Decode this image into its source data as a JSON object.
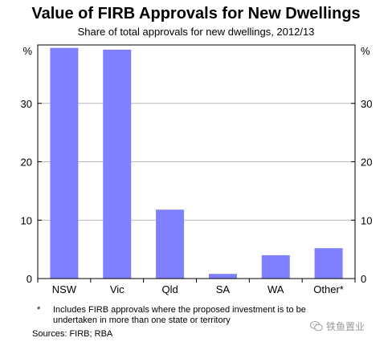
{
  "chart_data": {
    "type": "bar",
    "title": "Value of FIRB Approvals for New Dwellings",
    "subtitle": "Share of total approvals for new dwellings, 2012/13",
    "categories": [
      "NSW",
      "Vic",
      "Qld",
      "SA",
      "WA",
      "Other*"
    ],
    "values": [
      39.5,
      39.2,
      11.8,
      0.8,
      4.0,
      5.2
    ],
    "y_unit_label": "%",
    "ylim": [
      0,
      40
    ],
    "yticks": [
      0,
      10,
      20,
      30
    ],
    "grid": true,
    "bar_color": "#7f7fff"
  },
  "footnote": {
    "mark": "*",
    "text": "Includes FIRB approvals where the proposed investment is to be undertaken in more than one state or territory"
  },
  "sources": "Sources: FIRB; RBA",
  "watermark": "铁鱼置业"
}
